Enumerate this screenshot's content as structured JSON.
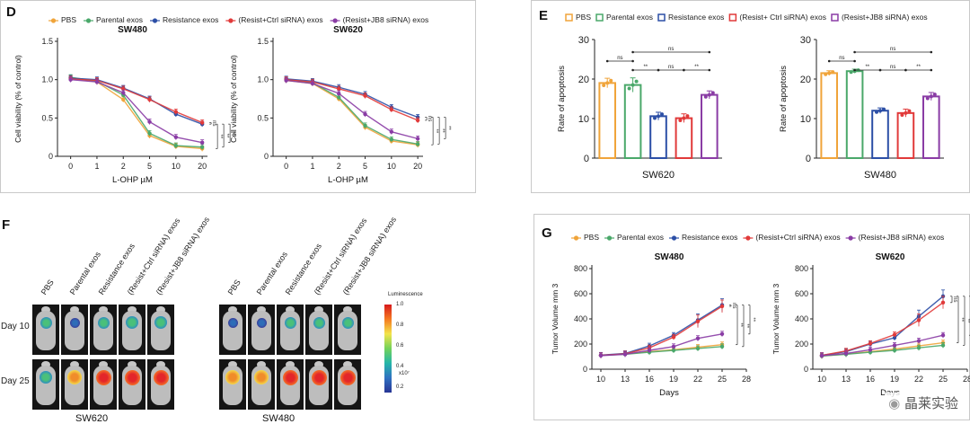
{
  "panel_labels": {
    "d": "D",
    "e": "E",
    "f": "F",
    "g": "G"
  },
  "chart_data": [
    {
      "id": "D1",
      "panel": "D",
      "type": "line",
      "title": "SW480",
      "xlabel": "L-OHP µM",
      "ylabel": "Cell viability (% of control)",
      "categories": [
        "0",
        "1",
        "2",
        "5",
        "10",
        "20"
      ],
      "ylim": [
        0,
        1.5
      ],
      "yticks": [
        "0",
        "0.5",
        "1.0",
        "1.5"
      ],
      "series": [
        {
          "name": "PBS",
          "color": "#f0a43a",
          "values": [
            1.02,
            0.97,
            0.74,
            0.27,
            0.13,
            0.1
          ]
        },
        {
          "name": "Parental exos",
          "color": "#4aa86a",
          "values": [
            1.03,
            0.98,
            0.8,
            0.3,
            0.14,
            0.12
          ]
        },
        {
          "name": "Resistance exos",
          "color": "#2c4fa6",
          "values": [
            1.02,
            1.0,
            0.89,
            0.75,
            0.55,
            0.42
          ]
        },
        {
          "name": "(Resist+Ctrl siRNA) exos",
          "color": "#e13a3a",
          "values": [
            1.01,
            0.99,
            0.88,
            0.74,
            0.58,
            0.44
          ]
        },
        {
          "name": "(Resist+JB8 siRNA) exos",
          "color": "#8a3ca5",
          "values": [
            1.0,
            0.97,
            0.83,
            0.45,
            0.25,
            0.18
          ]
        }
      ],
      "significance": [
        "ns",
        "**",
        "**",
        "**"
      ]
    },
    {
      "id": "D2",
      "panel": "D",
      "type": "line",
      "title": "SW620",
      "xlabel": "L-OHP µM",
      "ylabel": "Cell viability (% of control)",
      "categories": [
        "0",
        "1",
        "2",
        "5",
        "10",
        "20"
      ],
      "ylim": [
        0,
        1.5
      ],
      "yticks": [
        "0",
        "0.5",
        "1.0",
        "1.5"
      ],
      "series": [
        {
          "name": "PBS",
          "color": "#f0a43a",
          "values": [
            0.99,
            0.95,
            0.75,
            0.38,
            0.2,
            0.15
          ]
        },
        {
          "name": "Parental exos",
          "color": "#4aa86a",
          "values": [
            1.0,
            0.96,
            0.77,
            0.4,
            0.22,
            0.16
          ]
        },
        {
          "name": "Resistance exos",
          "color": "#2c4fa6",
          "values": [
            1.01,
            0.98,
            0.9,
            0.81,
            0.64,
            0.51
          ]
        },
        {
          "name": "(Resist+Ctrl siRNA) exos",
          "color": "#e13a3a",
          "values": [
            1.0,
            0.97,
            0.88,
            0.79,
            0.61,
            0.47
          ]
        },
        {
          "name": "(Resist+JB8 siRNA) exos",
          "color": "#8a3ca5",
          "values": [
            0.99,
            0.95,
            0.82,
            0.55,
            0.32,
            0.23
          ]
        }
      ],
      "significance": [
        "ns",
        "**",
        "**",
        "**"
      ]
    },
    {
      "id": "E1",
      "panel": "E",
      "type": "bar",
      "xlabel": "SW620",
      "ylabel": "Rate of apoptosis",
      "ylim": [
        0,
        30
      ],
      "yticks": [
        "0",
        "10",
        "20",
        "30"
      ],
      "categories": [
        "PBS",
        "Parental exos",
        "Resistance exos",
        "(Resist+ Ctrl siRNA) exos",
        "(Resist+JB8 siRNA) exos"
      ],
      "values": [
        19.0,
        18.5,
        10.6,
        10.1,
        16.0
      ],
      "errors": [
        1.2,
        1.8,
        1.0,
        1.1,
        1.0
      ],
      "colors": [
        "#f0a43a",
        "#4aa86a",
        "#2c4fa6",
        "#e13a3a",
        "#8a3ca5"
      ],
      "brackets": [
        {
          "label": "ns"
        },
        {
          "label": "ns"
        },
        {
          "label": "**"
        },
        {
          "label": "ns"
        },
        {
          "label": "**"
        }
      ]
    },
    {
      "id": "E2",
      "panel": "E",
      "type": "bar",
      "xlabel": "SW480",
      "ylabel": "Rate of apoptosis",
      "ylim": [
        0,
        30
      ],
      "yticks": [
        "0",
        "10",
        "20",
        "30"
      ],
      "categories": [
        "PBS",
        "Parental exos",
        "Resistance exos",
        "(Resist+ Ctrl siRNA) exos",
        "(Resist+JB8 siRNA) exos"
      ],
      "values": [
        21.5,
        22.0,
        12.0,
        11.4,
        15.6
      ],
      "errors": [
        0.6,
        0.5,
        0.7,
        1.0,
        1.0
      ],
      "colors": [
        "#f0a43a",
        "#4aa86a",
        "#2c4fa6",
        "#e13a3a",
        "#8a3ca5"
      ],
      "brackets": [
        {
          "label": "ns"
        },
        {
          "label": "ns"
        },
        {
          "label": "**"
        },
        {
          "label": "ns"
        },
        {
          "label": "**"
        }
      ]
    },
    {
      "id": "G1",
      "panel": "G",
      "type": "line",
      "title": "SW480",
      "xlabel": "Days",
      "ylabel": "Tumor Volume mm 3",
      "x": [
        10,
        13,
        16,
        19,
        22,
        25
      ],
      "xticks": [
        "10",
        "13",
        "16",
        "19",
        "22",
        "25",
        "28"
      ],
      "xlim": [
        10,
        28
      ],
      "ylim": [
        0,
        800
      ],
      "yticks": [
        "0",
        "200",
        "400",
        "600",
        "800"
      ],
      "series": [
        {
          "name": "PBS",
          "color": "#f0a43a",
          "values": [
            110,
            120,
            140,
            155,
            175,
            195
          ]
        },
        {
          "name": "Parental exos",
          "color": "#4aa86a",
          "values": [
            110,
            118,
            135,
            150,
            165,
            180
          ]
        },
        {
          "name": "Resistance exos",
          "color": "#2c4fa6",
          "values": [
            112,
            125,
            185,
            270,
            390,
            510
          ]
        },
        {
          "name": "(Resist+Ctrl siRNA) exos",
          "color": "#e13a3a",
          "values": [
            110,
            122,
            170,
            255,
            380,
            500
          ]
        },
        {
          "name": "(Resist+JB8 siRNA) exos",
          "color": "#8a3ca5",
          "values": [
            108,
            118,
            150,
            180,
            245,
            280
          ]
        }
      ],
      "significance": [
        "ns",
        "**",
        "**",
        "**"
      ]
    },
    {
      "id": "G2",
      "panel": "G",
      "type": "line",
      "title": "SW620",
      "xlabel": "Days",
      "ylabel": "Tumor Volume mm 3",
      "x": [
        10,
        13,
        16,
        19,
        22,
        25
      ],
      "xticks": [
        "10",
        "13",
        "16",
        "19",
        "22",
        "25",
        "28"
      ],
      "xlim": [
        10,
        28
      ],
      "ylim": [
        0,
        800
      ],
      "yticks": [
        "0",
        "200",
        "400",
        "600",
        "800"
      ],
      "series": [
        {
          "name": "PBS",
          "color": "#f0a43a",
          "values": [
            105,
            120,
            140,
            160,
            185,
            210
          ]
        },
        {
          "name": "Parental exos",
          "color": "#4aa86a",
          "values": [
            105,
            118,
            135,
            150,
            170,
            190
          ]
        },
        {
          "name": "Resistance exos",
          "color": "#2c4fa6",
          "values": [
            110,
            140,
            200,
            250,
            420,
            580
          ]
        },
        {
          "name": "(Resist+Ctrl siRNA) exos",
          "color": "#e13a3a",
          "values": [
            110,
            145,
            205,
            275,
            390,
            530
          ]
        },
        {
          "name": "(Resist+JB8 siRNA) exos",
          "color": "#8a3ca5",
          "values": [
            108,
            125,
            155,
            190,
            225,
            270
          ]
        }
      ],
      "significance": [
        "ns",
        "**",
        "**",
        "**"
      ]
    }
  ],
  "legends": {
    "d": [
      "PBS",
      "Parental exos",
      "Resistance exos",
      "(Resist+Ctrl siRNA) exos",
      "(Resist+JB8 siRNA) exos"
    ],
    "e": [
      "PBS",
      "Parental exos",
      "Resistance exos",
      "(Resist+ Ctrl siRNA) exos",
      "(Resist+JB8 siRNA) exos"
    ],
    "g": [
      "PBS",
      "Parental exos",
      "Resistance exos",
      "(Resist+Ctrl siRNA) exos",
      "(Resist+JB8 siRNA) exos"
    ]
  },
  "imaging": {
    "columns": [
      "PBS",
      "Parental exos",
      "Resistance exos",
      "(Resist+Ctrl siRNA) exos",
      "(Resist+JB8 siRNA) exos"
    ],
    "rows": [
      "Day 10",
      "Day 25"
    ],
    "groups": [
      "SW620",
      "SW480"
    ],
    "colorbar_title": "Luminescence",
    "colorbar_ticks": [
      "1.0",
      "0.8",
      "0.6",
      "0.4",
      "0.2"
    ],
    "colorbar_unit": "x10⁷",
    "signal_intensity": {
      "SW620": [
        [
          0.5,
          0.3,
          0.5,
          0.6,
          0.6
        ],
        [
          0.6,
          0.8,
          0.9,
          0.9,
          0.9
        ]
      ],
      "SW480": [
        [
          0.3,
          0.3,
          0.5,
          0.5,
          0.5
        ],
        [
          0.8,
          0.8,
          0.9,
          0.9,
          0.9
        ]
      ]
    }
  },
  "watermark": "晶莱实验"
}
